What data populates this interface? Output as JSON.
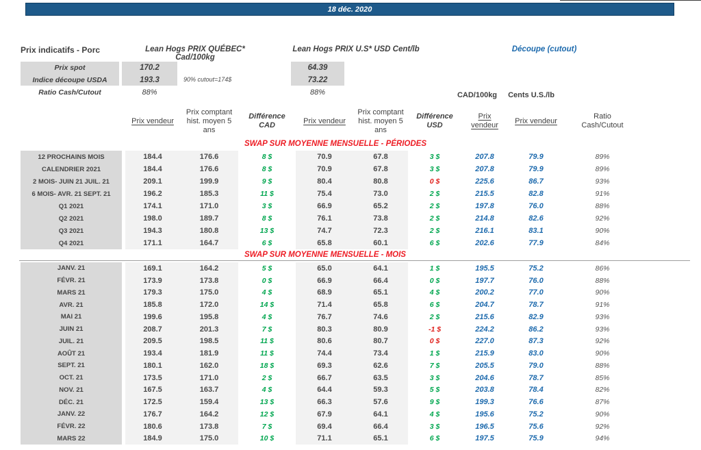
{
  "colors": {
    "bar_blue": "#1e5a8a",
    "cutout_blue": "#1d6aad",
    "diff_green": "#00a64f",
    "diff_red": "#e0201c",
    "section_red": "#ed1c24",
    "label_bg": "#d9d9d9",
    "column_bg": "#f2f2f2"
  },
  "date_bar": {
    "label": "18 déc. 2020"
  },
  "intro": {
    "title": "Prix indicatifs - Porc",
    "quebec_title": "Lean Hogs PRIX QUÉBEC* Cad/100kg",
    "us_title": "Lean Hogs PRIX U.S* USD Cent/lb",
    "cutout_title": "Découpe (cutout)",
    "spot_label": "Prix spot",
    "spot_cad": "170.2",
    "spot_usd": "64.39",
    "indice_label": "Indice découpe USDA",
    "indice_cad": "193.3",
    "indice_usd": "73.22",
    "indice_note": "90% cutout=174$",
    "ratio_label": "Ratio Cash/Cutout",
    "ratio_cad": "88%",
    "ratio_usd": "88%",
    "cutout_unit_cad": "CAD/100kg",
    "cutout_unit_cents": "Cents U.S./lb"
  },
  "table": {
    "headers": {
      "pv_cad": "Prix vendeur",
      "hist_cad": "Prix comptant hist. moyen 5 ans",
      "diff_cad": "Différence CAD",
      "pv_usd": "Prix vendeur",
      "hist_usd": "Prix comptant hist. moyen 5 ans",
      "diff_usd": "Différence USD",
      "cut_cad": "Prix vendeur",
      "cut_cents": "Prix vendeur",
      "ratio": "Ratio Cash/Cutout"
    },
    "sections": [
      {
        "title": "SWAP SUR MOYENNE MENSUELLE - PÉRIODES",
        "rows": [
          {
            "label": "12 PROCHAINS MOIS",
            "pv_cad": "184.4",
            "hist_cad": "176.6",
            "diff_cad": "8 $",
            "pv_usd": "70.9",
            "hist_usd": "67.8",
            "diff_usd": "3 $",
            "cut_cad": "207.8",
            "cut_cents": "79.9",
            "ratio": "89%"
          },
          {
            "label": "CALENDRIER 2021",
            "pv_cad": "184.4",
            "hist_cad": "176.6",
            "diff_cad": "8 $",
            "pv_usd": "70.9",
            "hist_usd": "67.8",
            "diff_usd": "3 $",
            "cut_cad": "207.8",
            "cut_cents": "79.9",
            "ratio": "89%"
          },
          {
            "label": "2 MOIS- JUIN 21 JUIL. 21",
            "pv_cad": "209.1",
            "hist_cad": "199.9",
            "diff_cad": "9 $",
            "pv_usd": "80.4",
            "hist_usd": "80.8",
            "diff_usd": "0 $",
            "diff_usd_red": true,
            "cut_cad": "225.6",
            "cut_cents": "86.7",
            "ratio": "93%"
          },
          {
            "label": "6 MOIS- AVR. 21 SEPT. 21",
            "pv_cad": "196.2",
            "hist_cad": "185.3",
            "diff_cad": "11 $",
            "pv_usd": "75.4",
            "hist_usd": "73.0",
            "diff_usd": "2 $",
            "cut_cad": "215.5",
            "cut_cents": "82.8",
            "ratio": "91%"
          },
          {
            "label": "Q1 2021",
            "pv_cad": "174.1",
            "hist_cad": "171.0",
            "diff_cad": "3 $",
            "pv_usd": "66.9",
            "hist_usd": "65.2",
            "diff_usd": "2 $",
            "cut_cad": "197.8",
            "cut_cents": "76.0",
            "ratio": "88%"
          },
          {
            "label": "Q2 2021",
            "pv_cad": "198.0",
            "hist_cad": "189.7",
            "diff_cad": "8 $",
            "pv_usd": "76.1",
            "hist_usd": "73.8",
            "diff_usd": "2 $",
            "cut_cad": "214.8",
            "cut_cents": "82.6",
            "ratio": "92%"
          },
          {
            "label": "Q3 2021",
            "pv_cad": "194.3",
            "hist_cad": "180.8",
            "diff_cad": "13 $",
            "pv_usd": "74.7",
            "hist_usd": "72.3",
            "diff_usd": "2 $",
            "cut_cad": "216.1",
            "cut_cents": "83.1",
            "ratio": "90%"
          },
          {
            "label": "Q4 2021",
            "pv_cad": "171.1",
            "hist_cad": "164.7",
            "diff_cad": "6 $",
            "pv_usd": "65.8",
            "hist_usd": "60.1",
            "diff_usd": "6 $",
            "cut_cad": "202.6",
            "cut_cents": "77.9",
            "ratio": "84%"
          }
        ]
      },
      {
        "title": "SWAP SUR MOYENNE MENSUELLE - MOIS",
        "rows": [
          {
            "label": "JANV. 21",
            "pv_cad": "169.1",
            "hist_cad": "164.2",
            "diff_cad": "5 $",
            "pv_usd": "65.0",
            "hist_usd": "64.1",
            "diff_usd": "1 $",
            "cut_cad": "195.5",
            "cut_cents": "75.2",
            "ratio": "86%"
          },
          {
            "label": "FÉVR. 21",
            "pv_cad": "173.9",
            "hist_cad": "173.8",
            "diff_cad": "0 $",
            "pv_usd": "66.9",
            "hist_usd": "66.4",
            "diff_usd": "0 $",
            "cut_cad": "197.7",
            "cut_cents": "76.0",
            "ratio": "88%"
          },
          {
            "label": "MARS 21",
            "pv_cad": "179.3",
            "hist_cad": "175.0",
            "diff_cad": "4 $",
            "pv_usd": "68.9",
            "hist_usd": "65.1",
            "diff_usd": "4 $",
            "cut_cad": "200.2",
            "cut_cents": "77.0",
            "ratio": "90%"
          },
          {
            "label": "AVR. 21",
            "pv_cad": "185.8",
            "hist_cad": "172.0",
            "diff_cad": "14 $",
            "pv_usd": "71.4",
            "hist_usd": "65.8",
            "diff_usd": "6 $",
            "cut_cad": "204.7",
            "cut_cents": "78.7",
            "ratio": "91%"
          },
          {
            "label": "MAI 21",
            "pv_cad": "199.6",
            "hist_cad": "195.8",
            "diff_cad": "4 $",
            "pv_usd": "76.7",
            "hist_usd": "74.6",
            "diff_usd": "2 $",
            "cut_cad": "215.6",
            "cut_cents": "82.9",
            "ratio": "93%"
          },
          {
            "label": "JUIN 21",
            "pv_cad": "208.7",
            "hist_cad": "201.3",
            "diff_cad": "7 $",
            "pv_usd": "80.3",
            "hist_usd": "80.9",
            "diff_usd": "-1 $",
            "diff_usd_red": true,
            "cut_cad": "224.2",
            "cut_cents": "86.2",
            "ratio": "93%"
          },
          {
            "label": "JUIL. 21",
            "pv_cad": "209.5",
            "hist_cad": "198.5",
            "diff_cad": "11 $",
            "pv_usd": "80.6",
            "hist_usd": "80.7",
            "diff_usd": "0 $",
            "diff_usd_red": true,
            "cut_cad": "227.0",
            "cut_cents": "87.3",
            "ratio": "92%"
          },
          {
            "label": "AOÛT 21",
            "pv_cad": "193.4",
            "hist_cad": "181.9",
            "diff_cad": "11 $",
            "pv_usd": "74.4",
            "hist_usd": "73.4",
            "diff_usd": "1 $",
            "cut_cad": "215.9",
            "cut_cents": "83.0",
            "ratio": "90%"
          },
          {
            "label": "SEPT. 21",
            "pv_cad": "180.1",
            "hist_cad": "162.0",
            "diff_cad": "18 $",
            "pv_usd": "69.3",
            "hist_usd": "62.6",
            "diff_usd": "7 $",
            "cut_cad": "205.5",
            "cut_cents": "79.0",
            "ratio": "88%"
          },
          {
            "label": "OCT. 21",
            "pv_cad": "173.5",
            "hist_cad": "171.0",
            "diff_cad": "2 $",
            "pv_usd": "66.7",
            "hist_usd": "63.5",
            "diff_usd": "3 $",
            "cut_cad": "204.6",
            "cut_cents": "78.7",
            "ratio": "85%"
          },
          {
            "label": "NOV. 21",
            "pv_cad": "167.5",
            "hist_cad": "163.7",
            "diff_cad": "4 $",
            "pv_usd": "64.4",
            "hist_usd": "59.3",
            "diff_usd": "5 $",
            "cut_cad": "203.8",
            "cut_cents": "78.4",
            "ratio": "82%"
          },
          {
            "label": "DÉC. 21",
            "pv_cad": "172.5",
            "hist_cad": "159.4",
            "diff_cad": "13 $",
            "pv_usd": "66.3",
            "hist_usd": "57.6",
            "diff_usd": "9 $",
            "cut_cad": "199.3",
            "cut_cents": "76.6",
            "ratio": "87%"
          },
          {
            "label": "JANV. 22",
            "pv_cad": "176.7",
            "hist_cad": "164.2",
            "diff_cad": "12 $",
            "pv_usd": "67.9",
            "hist_usd": "64.1",
            "diff_usd": "4 $",
            "cut_cad": "195.6",
            "cut_cents": "75.2",
            "ratio": "90%"
          },
          {
            "label": "FÉVR. 22",
            "pv_cad": "180.6",
            "hist_cad": "173.8",
            "diff_cad": "7 $",
            "pv_usd": "69.4",
            "hist_usd": "66.4",
            "diff_usd": "3 $",
            "cut_cad": "196.5",
            "cut_cents": "75.6",
            "ratio": "92%"
          },
          {
            "label": "MARS 22",
            "pv_cad": "184.9",
            "hist_cad": "175.0",
            "diff_cad": "10 $",
            "pv_usd": "71.1",
            "hist_usd": "65.1",
            "diff_usd": "6 $",
            "cut_cad": "197.5",
            "cut_cents": "75.9",
            "ratio": "94%"
          }
        ]
      }
    ]
  }
}
